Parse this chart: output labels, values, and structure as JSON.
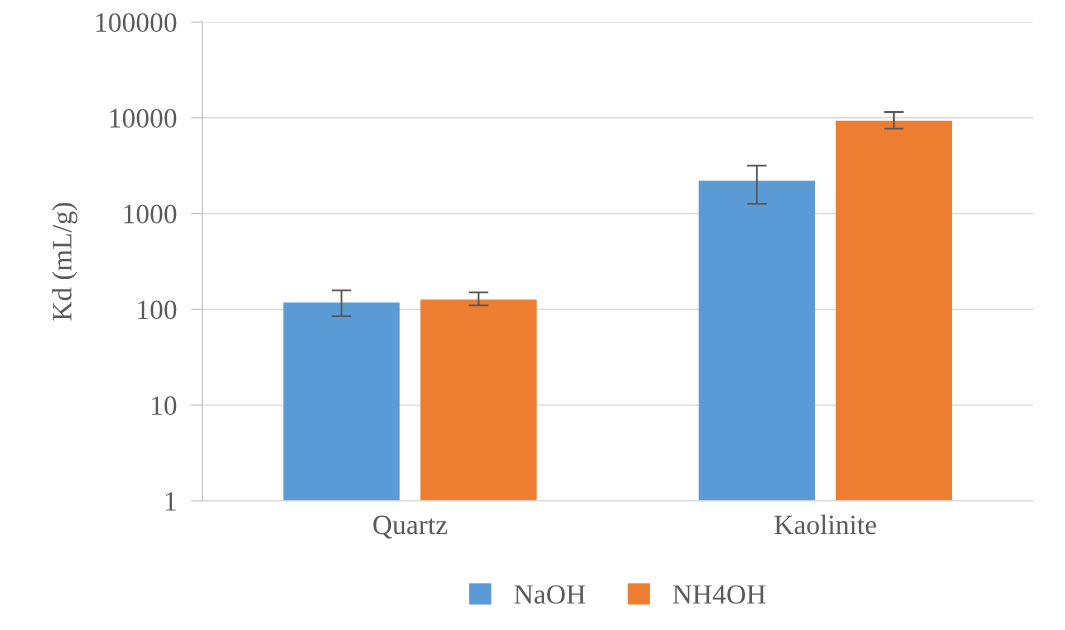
{
  "chart_data": {
    "type": "bar",
    "ylabel": "Kd (mL/g)",
    "categories": [
      "Quartz",
      "Kaolinite"
    ],
    "series": [
      {
        "name": "NaOH",
        "color": "#5b9bd5",
        "values": [
          118,
          2200
        ],
        "errors": [
          [
            85,
            158
          ],
          [
            1260,
            3160
          ]
        ]
      },
      {
        "name": "NH4OH",
        "color": "#ed7d31",
        "values": [
          127,
          9300
        ],
        "errors": [
          [
            110,
            150
          ],
          [
            7700,
            11500
          ]
        ]
      }
    ],
    "log": "y",
    "ylim": [
      1,
      100000
    ],
    "yticks": [
      1,
      10,
      100,
      1000,
      10000,
      100000
    ],
    "grid": "y",
    "legend": "bottom"
  }
}
